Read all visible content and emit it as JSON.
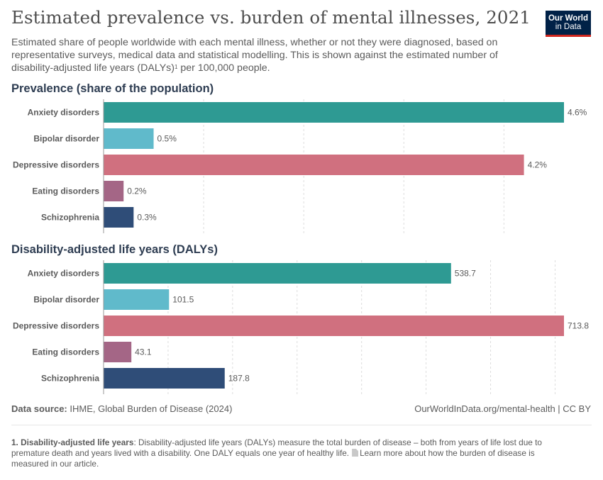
{
  "header": {
    "title": "Estimated prevalence vs. burden of mental illnesses, 2021",
    "subtitle_part1": "Estimated share of people worldwide with each mental illness, whether or not they were diagnosed, based on representative surveys, medical data and statistical modelling. This is shown against the estimated number of disability-adjusted life years (DALYs)",
    "subtitle_footnote_mark": "1",
    "subtitle_part2": " per 100,000 people.",
    "logo_line1": "Our World",
    "logo_line2": "in Data"
  },
  "colors": {
    "Anxiety disorders": "#2e9a93",
    "Bipolar disorder": "#60bacb",
    "Depressive disorders": "#d0707f",
    "Eating disorders": "#a46686",
    "Schizophrenia": "#2f4d78",
    "gridline": "#dddddd",
    "text": "#5b5b5b"
  },
  "chart_data": [
    {
      "type": "bar",
      "orientation": "horizontal",
      "title": "Prevalence (share of the population)",
      "categories": [
        "Anxiety disorders",
        "Bipolar disorder",
        "Depressive disorders",
        "Eating disorders",
        "Schizophrenia"
      ],
      "values": [
        4.6,
        0.5,
        4.2,
        0.2,
        0.3
      ],
      "value_labels": [
        "4.6%",
        "0.5%",
        "4.2%",
        "0.2%",
        "0.3%"
      ],
      "xlim": [
        0,
        4.6
      ],
      "grid_step": 1,
      "grid": true
    },
    {
      "type": "bar",
      "orientation": "horizontal",
      "title": "Disability-adjusted life years (DALYs)",
      "categories": [
        "Anxiety disorders",
        "Bipolar disorder",
        "Depressive disorders",
        "Eating disorders",
        "Schizophrenia"
      ],
      "values": [
        538.7,
        101.5,
        713.8,
        43.1,
        187.8
      ],
      "value_labels": [
        "538.7",
        "101.5",
        "713.8",
        "43.1",
        "187.8"
      ],
      "xlim": [
        0,
        713.8
      ],
      "grid_step": 100,
      "grid": true
    }
  ],
  "footer": {
    "source_label": "Data source:",
    "source_text": " IHME, Global Burden of Disease (2024)",
    "credit": "OurWorldInData.org/mental-health | CC BY"
  },
  "footnote": {
    "term": "1. Disability-adjusted life years",
    "text": ": Disability-adjusted life years (DALYs) measure the total burden of disease – both from years of life lost due to premature death and years lived with a disability. One DALY equals one year of healthy life.",
    "link_text": "Learn more about how the burden of disease is measured in our article."
  }
}
